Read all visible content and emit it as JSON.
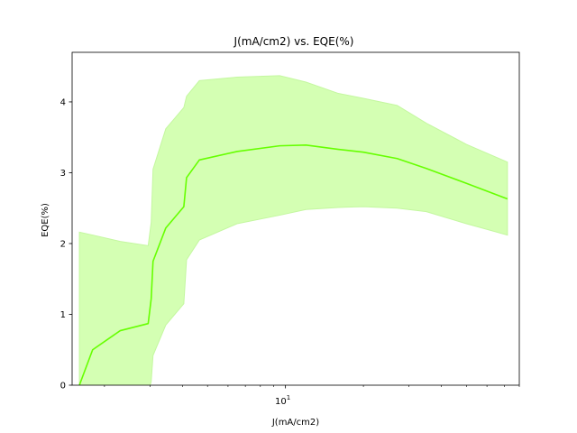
{
  "chart_data": {
    "type": "line",
    "title": "J(mA/cm2) vs. EQE(%)",
    "xlabel": "J(mA/cm2)",
    "ylabel": "EQE(%)",
    "x_scale": "log",
    "xlim": [
      1.5,
      80
    ],
    "ylim": [
      0,
      4.7
    ],
    "grid": false,
    "x_major_ticks": [
      {
        "value": 10,
        "base": "10",
        "exp": "1"
      }
    ],
    "x_minor_ticks": [
      2,
      3,
      4,
      5,
      6,
      7,
      8,
      9,
      20,
      30,
      40,
      50,
      60,
      70,
      80
    ],
    "y_ticks": [
      0,
      1,
      2,
      3,
      4
    ],
    "y_tick_labels": [
      "0",
      "1",
      "2",
      "3",
      "4"
    ],
    "colors": {
      "line": "#66ff00",
      "band": "#d4ffb3",
      "band_edge": "#c4f7a0"
    },
    "series": [
      {
        "x": [
          1.6,
          1.8,
          2.3,
          2.95,
          3.03,
          3.08,
          3.45,
          4.05,
          4.15,
          4.65,
          6.5,
          9.5,
          12,
          16,
          20,
          27,
          35,
          50,
          72
        ],
        "values": [
          0.0,
          0.5,
          0.77,
          0.87,
          1.22,
          1.75,
          2.22,
          2.52,
          2.93,
          3.18,
          3.3,
          3.38,
          3.39,
          3.33,
          3.29,
          3.2,
          3.06,
          2.85,
          2.63
        ],
        "band_upper": [
          2.16,
          2.12,
          2.03,
          1.97,
          2.3,
          3.05,
          3.62,
          3.92,
          4.08,
          4.3,
          4.35,
          4.37,
          4.28,
          4.12,
          4.05,
          3.95,
          3.7,
          3.4,
          3.15
        ],
        "band_lower": [
          -0.1,
          -0.1,
          -0.1,
          -0.1,
          0.05,
          0.42,
          0.85,
          1.15,
          1.77,
          2.05,
          2.28,
          2.4,
          2.48,
          2.51,
          2.52,
          2.5,
          2.45,
          2.28,
          2.12
        ]
      }
    ]
  }
}
